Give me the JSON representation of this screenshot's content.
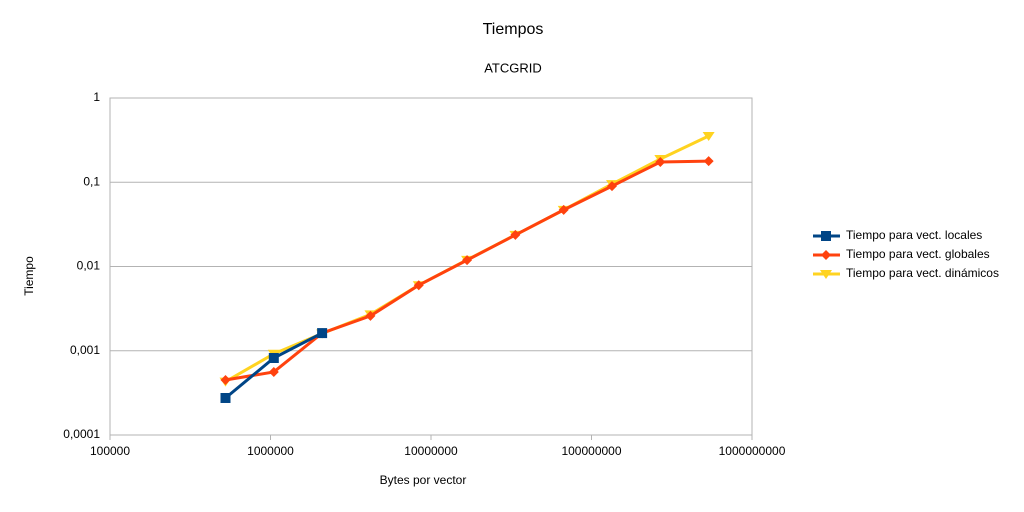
{
  "chart_data": {
    "type": "line",
    "title": "Tiempos",
    "subtitle": "ATCGRID",
    "x_label": "Bytes por vector",
    "y_label": "Tiempo",
    "x": [
      524288,
      1048576,
      2097152,
      4194304,
      8388608,
      16777216,
      33554432,
      67108864,
      134217728,
      268435456,
      536870912
    ],
    "series": [
      {
        "name": "Tiempo para vect. locales",
        "color": "#004586",
        "marker": "square",
        "values": [
          0.000275,
          0.00082,
          0.00162,
          null,
          null,
          null,
          null,
          null,
          null,
          null,
          null
        ]
      },
      {
        "name": "Tiempo para vect. globales",
        "color": "#ff420e",
        "marker": "diamond",
        "values": [
          0.00045,
          0.00056,
          0.00162,
          0.00259,
          0.006,
          0.0119,
          0.0237,
          0.047,
          0.09,
          0.174,
          0.178
        ]
      },
      {
        "name": "Tiempo para vect. dinámicos",
        "color": "#ffd320",
        "marker": "triangle-down",
        "values": [
          0.00043,
          0.00092,
          0.0016,
          0.0027,
          0.006,
          0.012,
          0.0237,
          0.047,
          0.095,
          0.189,
          0.354
        ]
      }
    ],
    "xlim": [
      100000,
      1000000000
    ],
    "xticks": [
      100000,
      1000000,
      10000000,
      100000000,
      1000000000
    ],
    "ylim": [
      0.0001,
      1
    ],
    "yticks": [
      {
        "value": 0.0001,
        "label": "0,0001"
      },
      {
        "value": 0.001,
        "label": "0,001"
      },
      {
        "value": 0.01,
        "label": "0,01"
      },
      {
        "value": 0.1,
        "label": "0,1"
      },
      1
    ],
    "x_log": true,
    "y_log": true,
    "grid": true,
    "legend": "right"
  }
}
